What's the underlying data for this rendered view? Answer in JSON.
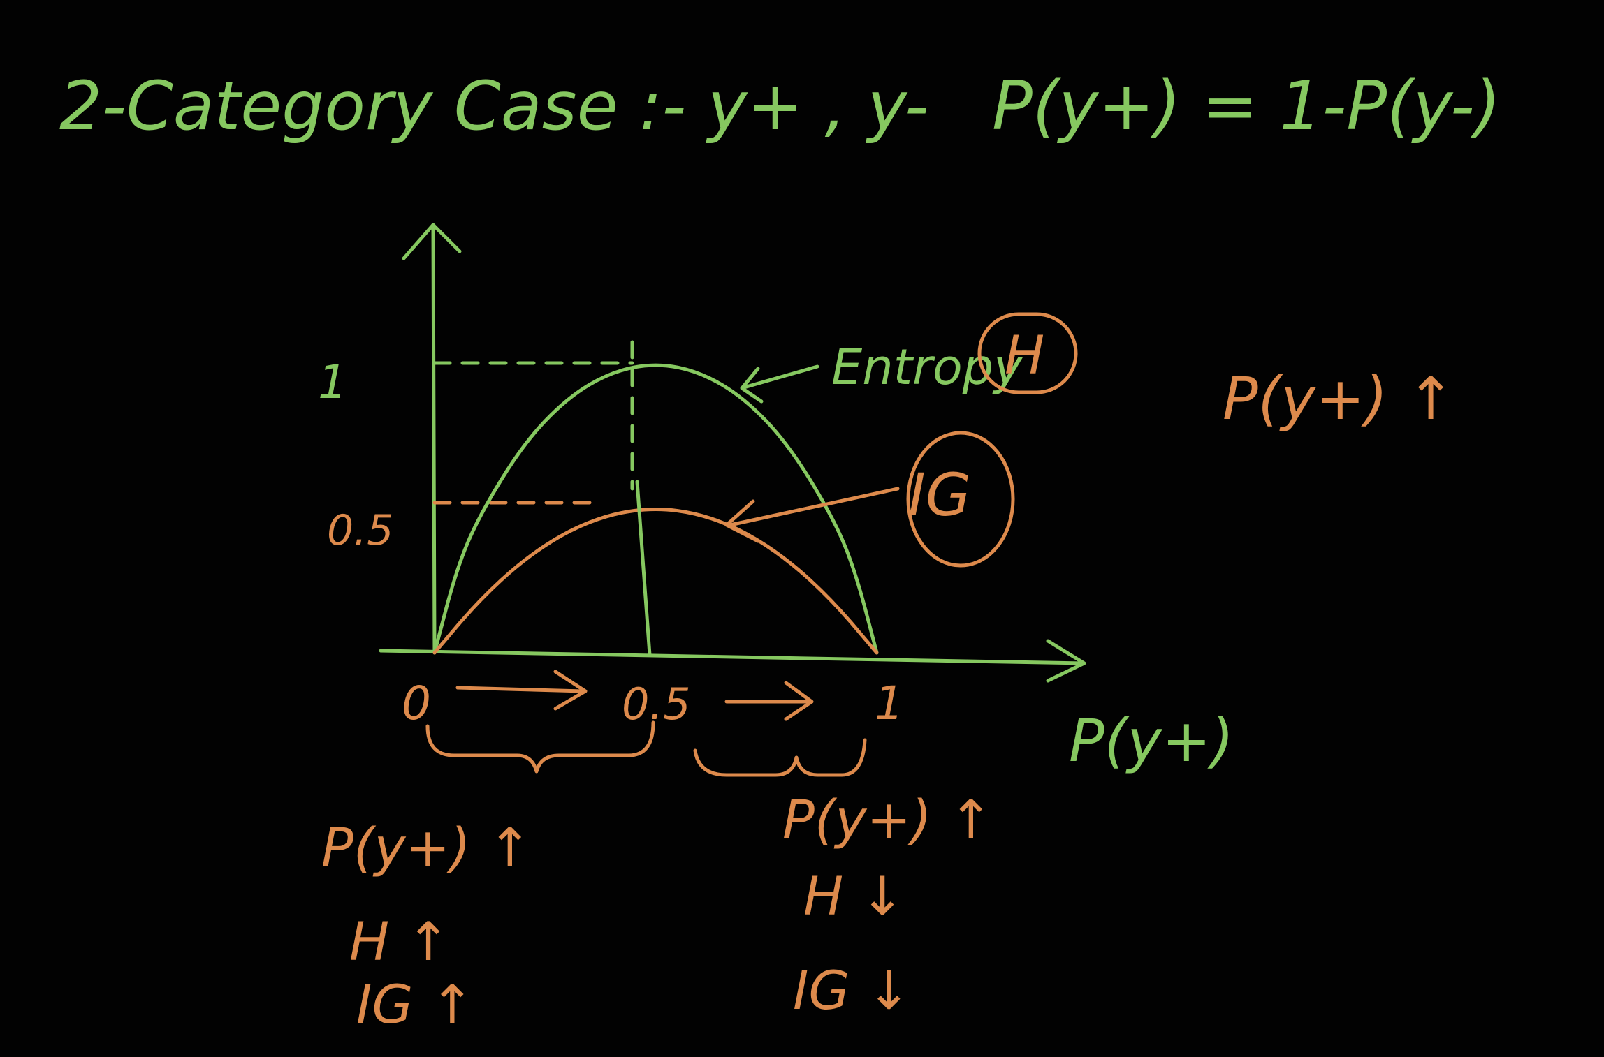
{
  "header": {
    "case_label": "2-Category Case :- y+ , y-",
    "relation": "P(y+) = 1-P(y-)"
  },
  "side_note": "P(y+) ↑",
  "chart_data": {
    "type": "line",
    "xlabel": "P(y+)",
    "ylabel": "",
    "xlim": [
      0,
      1
    ],
    "ylim": [
      0,
      1
    ],
    "x_ticks": [
      "0",
      "0.5",
      "1"
    ],
    "y_ticks": [
      "1",
      "0.5"
    ],
    "grid": false,
    "series": [
      {
        "name": "Entropy H",
        "color": "#86c860",
        "x": [
          0,
          0.05,
          0.1,
          0.2,
          0.3,
          0.4,
          0.5,
          0.6,
          0.7,
          0.8,
          0.9,
          0.95,
          1
        ],
        "y": [
          0,
          0.29,
          0.47,
          0.72,
          0.88,
          0.97,
          1,
          0.97,
          0.88,
          0.72,
          0.47,
          0.29,
          0
        ]
      },
      {
        "name": "IG",
        "color": "#dd8a4c",
        "x": [
          0,
          0.1,
          0.2,
          0.3,
          0.4,
          0.5,
          0.6,
          0.7,
          0.8,
          0.9,
          1
        ],
        "y": [
          0,
          0.18,
          0.32,
          0.42,
          0.48,
          0.5,
          0.48,
          0.42,
          0.32,
          0.18,
          0
        ]
      }
    ],
    "annotations": {
      "entropy_label": "Entropy",
      "entropy_symbol": "H",
      "gini_symbol": "IG",
      "left_region": [
        "P(y+) ↑",
        "H ↑",
        "IG ↑"
      ],
      "right_region": [
        "P(y+) ↑",
        "H ↓",
        "IG ↓"
      ]
    }
  }
}
